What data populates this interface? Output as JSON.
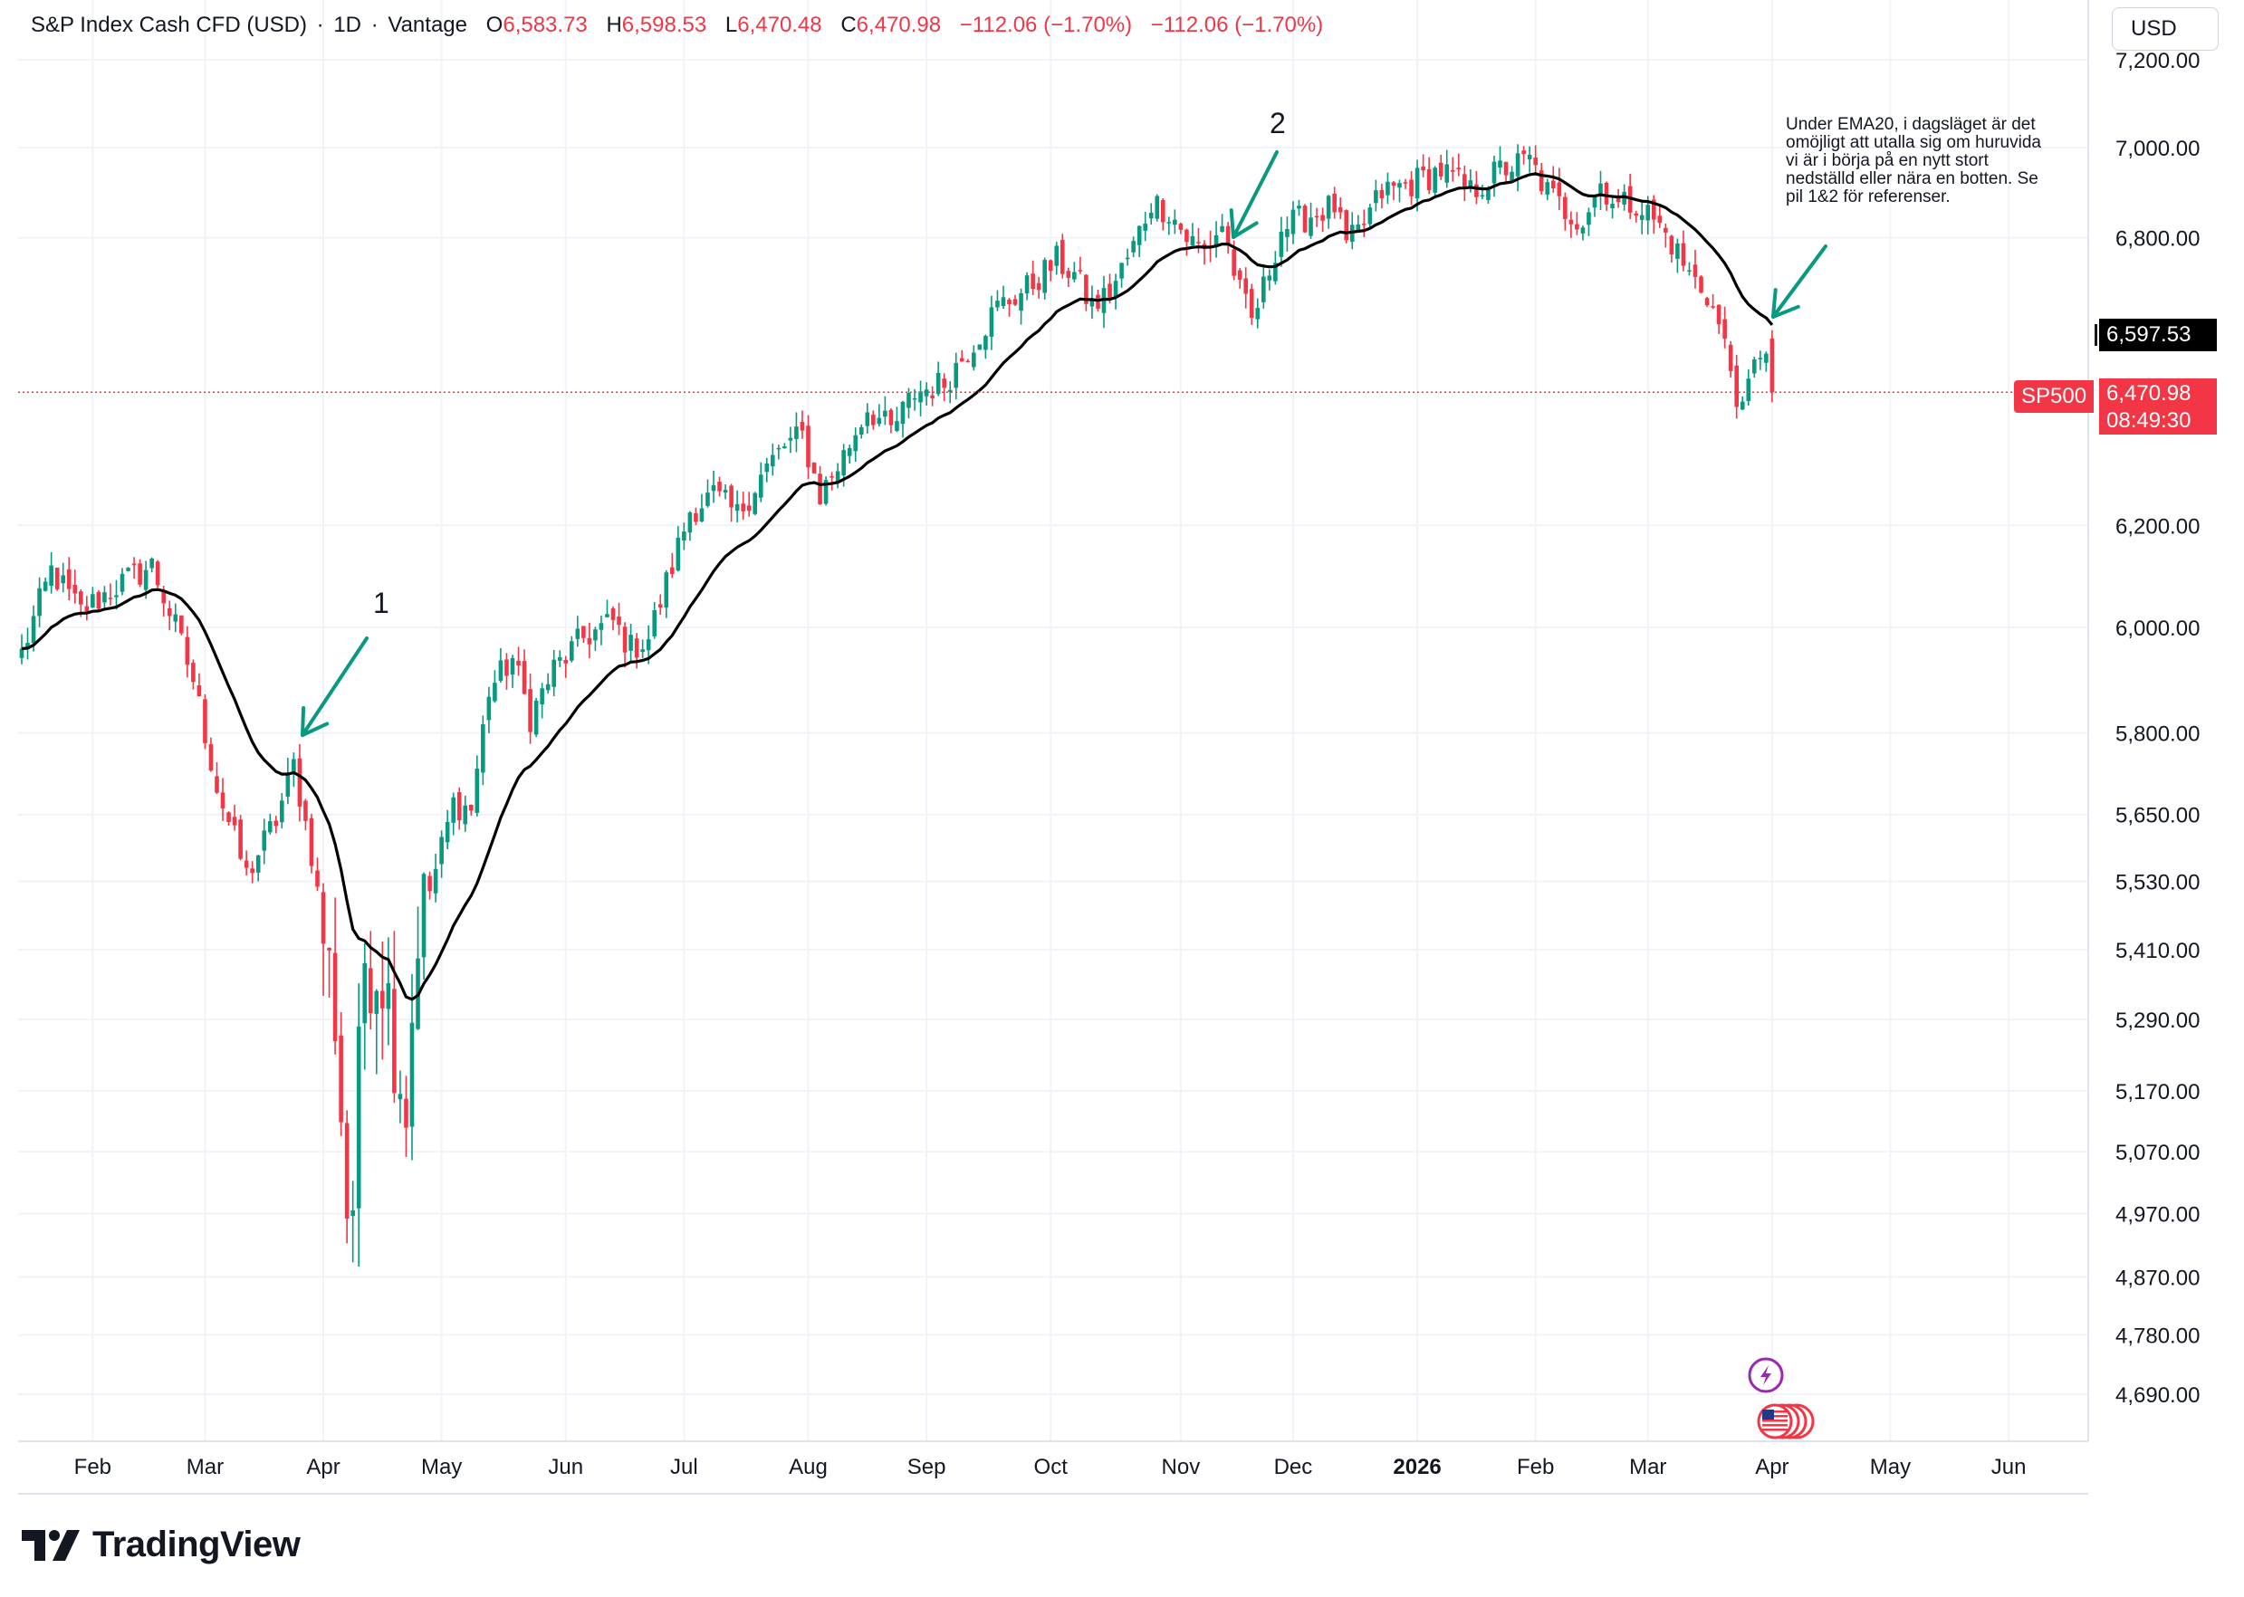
{
  "header": {
    "symbol": "S&P Index Cash CFD (USD)",
    "sep1": "·",
    "interval": "1D",
    "sep2": "·",
    "broker": "Vantage",
    "o_label": "O",
    "o_value": "6,583.73",
    "h_label": "H",
    "h_value": "6,598.53",
    "l_label": "L",
    "l_value": "6,470.48",
    "c_label": "C",
    "c_value": "6,470.98",
    "change": "−112.06 (−1.70%)",
    "change2": "−112.06 (−1.70%)"
  },
  "currency_button": "USD",
  "price_labels": {
    "ema_value": "6,597.53",
    "last_value": "6,470.98",
    "countdown": "08:49:30",
    "symbol_tag": "SP500"
  },
  "annotations": {
    "arrow1_label": "1",
    "arrow2_label": "2",
    "note_text": "Under EMA20, i dagsläget är det omöjligt att utalla sig om huruvida vi är i börja på en nytt stort nedställd eller nära en botten. Se pil 1&2 för referenser."
  },
  "logo": {
    "text": "TradingView"
  },
  "icons": {
    "lightning": "lightning-icon",
    "flag": "us-flag-icon"
  },
  "colors": {
    "up": "#089981",
    "down": "#f23645",
    "ema": "#000000",
    "arrow": "#089981",
    "last_price": "#f23645"
  },
  "chart_data": {
    "type": "candlestick",
    "title": "",
    "xlabel": "",
    "ylabel": "",
    "scale": "log",
    "ylim": [
      4620,
      7260
    ],
    "y_ticks": [
      7200,
      7000,
      6800,
      6200,
      6000,
      5800,
      5650,
      5530,
      5410,
      5290,
      5170,
      5070,
      4970,
      4870,
      4780,
      4690
    ],
    "y_tick_labels": [
      "7,200.00",
      "7,000.00",
      "6,800.00",
      "6,200.00",
      "6,000.00",
      "5,800.00",
      "5,650.00",
      "5,530.00",
      "5,410.00",
      "5,290.00",
      "5,170.00",
      "5,070.00",
      "4,970.00",
      "4,870.00",
      "4,780.00",
      "4,690.00"
    ],
    "x_ticks": [
      {
        "label": "Feb",
        "t": 12
      },
      {
        "label": "Mar",
        "t": 31
      },
      {
        "label": "Apr",
        "t": 51
      },
      {
        "label": "May",
        "t": 71
      },
      {
        "label": "Jun",
        "t": 92
      },
      {
        "label": "Jul",
        "t": 112
      },
      {
        "label": "Aug",
        "t": 133
      },
      {
        "label": "Sep",
        "t": 153
      },
      {
        "label": "Oct",
        "t": 174
      },
      {
        "label": "Nov",
        "t": 196
      },
      {
        "label": "Dec",
        "t": 215
      },
      {
        "label": "2026",
        "t": 236,
        "bold": true
      },
      {
        "label": "Feb",
        "t": 256
      },
      {
        "label": "Mar",
        "t": 275
      },
      {
        "label": "Apr",
        "t": 296
      },
      {
        "label": "May",
        "t": 316
      },
      {
        "label": "Jun",
        "t": 336
      }
    ],
    "anchors": [
      {
        "t": 0,
        "p": 5950
      },
      {
        "t": 5,
        "p": 6110
      },
      {
        "t": 10,
        "p": 6030
      },
      {
        "t": 16,
        "p": 6080
      },
      {
        "t": 22,
        "p": 6120
      },
      {
        "t": 26,
        "p": 6000
      },
      {
        "t": 29,
        "p": 5900
      },
      {
        "t": 33,
        "p": 5700
      },
      {
        "t": 38,
        "p": 5540
      },
      {
        "t": 43,
        "p": 5640
      },
      {
        "t": 46,
        "p": 5740
      },
      {
        "t": 49,
        "p": 5580
      },
      {
        "t": 53,
        "p": 5300
      },
      {
        "t": 55,
        "p": 4980
      },
      {
        "t": 56,
        "p": 4990
      },
      {
        "t": 58,
        "p": 5400
      },
      {
        "t": 61,
        "p": 5380
      },
      {
        "t": 63,
        "p": 5260
      },
      {
        "t": 65,
        "p": 5150
      },
      {
        "t": 67,
        "p": 5450
      },
      {
        "t": 70,
        "p": 5550
      },
      {
        "t": 73,
        "p": 5670
      },
      {
        "t": 76,
        "p": 5660
      },
      {
        "t": 79,
        "p": 5880
      },
      {
        "t": 83,
        "p": 5940
      },
      {
        "t": 86,
        "p": 5830
      },
      {
        "t": 90,
        "p": 5920
      },
      {
        "t": 95,
        "p": 5980
      },
      {
        "t": 100,
        "p": 6010
      },
      {
        "t": 103,
        "p": 5960
      },
      {
        "t": 106,
        "p": 5980
      },
      {
        "t": 110,
        "p": 6120
      },
      {
        "t": 113,
        "p": 6230
      },
      {
        "t": 117,
        "p": 6260
      },
      {
        "t": 121,
        "p": 6220
      },
      {
        "t": 125,
        "p": 6300
      },
      {
        "t": 129,
        "p": 6360
      },
      {
        "t": 132,
        "p": 6380
      },
      {
        "t": 135,
        "p": 6260
      },
      {
        "t": 139,
        "p": 6340
      },
      {
        "t": 143,
        "p": 6440
      },
      {
        "t": 147,
        "p": 6390
      },
      {
        "t": 151,
        "p": 6470
      },
      {
        "t": 156,
        "p": 6490
      },
      {
        "t": 160,
        "p": 6560
      },
      {
        "t": 165,
        "p": 6650
      },
      {
        "t": 170,
        "p": 6690
      },
      {
        "t": 175,
        "p": 6750
      },
      {
        "t": 178,
        "p": 6720
      },
      {
        "t": 181,
        "p": 6650
      },
      {
        "t": 184,
        "p": 6680
      },
      {
        "t": 188,
        "p": 6780
      },
      {
        "t": 191,
        "p": 6880
      },
      {
        "t": 194,
        "p": 6860
      },
      {
        "t": 197,
        "p": 6800
      },
      {
        "t": 200,
        "p": 6770
      },
      {
        "t": 203,
        "p": 6830
      },
      {
        "t": 206,
        "p": 6680
      },
      {
        "t": 208,
        "p": 6620
      },
      {
        "t": 210,
        "p": 6690
      },
      {
        "t": 213,
        "p": 6820
      },
      {
        "t": 218,
        "p": 6850
      },
      {
        "t": 222,
        "p": 6870
      },
      {
        "t": 224,
        "p": 6780
      },
      {
        "t": 226,
        "p": 6810
      },
      {
        "t": 230,
        "p": 6900
      },
      {
        "t": 235,
        "p": 6920
      },
      {
        "t": 240,
        "p": 6950
      },
      {
        "t": 245,
        "p": 6900
      },
      {
        "t": 250,
        "p": 6950
      },
      {
        "t": 255,
        "p": 6970
      },
      {
        "t": 258,
        "p": 6900
      },
      {
        "t": 261,
        "p": 6860
      },
      {
        "t": 264,
        "p": 6840
      },
      {
        "t": 267,
        "p": 6920
      },
      {
        "t": 270,
        "p": 6870
      },
      {
        "t": 273,
        "p": 6880
      },
      {
        "t": 276,
        "p": 6840
      },
      {
        "t": 279,
        "p": 6790
      },
      {
        "t": 282,
        "p": 6720
      },
      {
        "t": 285,
        "p": 6680
      },
      {
        "t": 287,
        "p": 6610
      },
      {
        "t": 289,
        "p": 6520
      },
      {
        "t": 291,
        "p": 6420
      },
      {
        "t": 292,
        "p": 6480
      },
      {
        "t": 294,
        "p": 6560
      },
      {
        "t": 296,
        "p": 6583
      }
    ],
    "ema_period": 20,
    "ema_last": 6597.53,
    "last_price": 6470.98
  }
}
